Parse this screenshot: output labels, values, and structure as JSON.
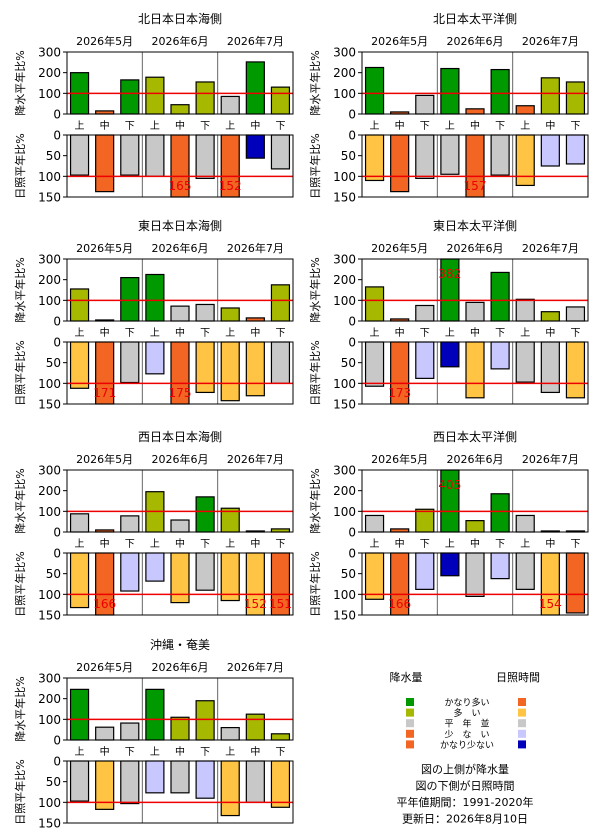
{
  "months": [
    "2026年5月",
    "2026年6月",
    "2026年7月"
  ],
  "periods": [
    "上",
    "中",
    "下",
    "上",
    "中",
    "下",
    "上",
    "中",
    "下"
  ],
  "precip_axis_label": "降水平年比%",
  "sun_axis_label": "日照平年比%",
  "precip_ticks": [
    "0",
    "100",
    "200",
    "300"
  ],
  "sun_ticks": [
    "0",
    "50",
    "100",
    "150"
  ],
  "colors": {
    "precip": {
      "very_much": "#009900",
      "much": "#a6b900",
      "normal": "#c8c8c8",
      "little": "#f26522",
      "very_little": "#f26522"
    },
    "sun": {
      "very_much": "#f26522",
      "much": "#ffc444",
      "normal": "#c8c8c8",
      "little": "#c8c8ff",
      "very_little": "#0000bb"
    },
    "ref_line": "#ee0000",
    "over_label": "#ee0000"
  },
  "legend": {
    "precip_title": "降水量",
    "sun_title": "日照時間",
    "items": [
      "かなり多い",
      "多　い",
      "平　年　並",
      "少　な　い",
      "かなり少ない"
    ],
    "precip_colors": [
      "#009900",
      "#a6b900",
      "#c8c8c8",
      "#f26522",
      "#f26522"
    ],
    "sun_colors": [
      "#f26522",
      "#ffc444",
      "#c8c8c8",
      "#c8c8ff",
      "#0000bb"
    ]
  },
  "notes": [
    "図の上側が降水量",
    "図の下側が日照時間",
    "平年値期間：1991-2020年",
    "更新日：2026年8月10日"
  ],
  "chart_data": [
    {
      "type": "bar",
      "title": "北日本日本海側",
      "categories": [
        "上",
        "中",
        "下",
        "上",
        "中",
        "下",
        "上",
        "中",
        "下"
      ],
      "precip": {
        "values": [
          200,
          15,
          165,
          178,
          45,
          155,
          85,
          252,
          130
        ],
        "classes": [
          "very_much",
          "little",
          "very_much",
          "much",
          "much",
          "much",
          "normal",
          "very_much",
          "much"
        ],
        "ylim": [
          0,
          300
        ]
      },
      "sunshine": {
        "values": [
          97,
          137,
          97,
          100,
          165,
          105,
          152,
          56,
          82
        ],
        "classes": [
          "normal",
          "very_much",
          "normal",
          "normal",
          "very_much",
          "normal",
          "very_much",
          "very_little",
          "normal"
        ],
        "ylim": [
          0,
          150
        ]
      }
    },
    {
      "type": "bar",
      "title": "北日本太平洋側",
      "categories": [
        "上",
        "中",
        "下",
        "上",
        "中",
        "下",
        "上",
        "中",
        "下"
      ],
      "precip": {
        "values": [
          225,
          10,
          90,
          220,
          25,
          215,
          40,
          175,
          155
        ],
        "classes": [
          "very_much",
          "little",
          "normal",
          "very_much",
          "little",
          "very_much",
          "little",
          "much",
          "much"
        ],
        "ylim": [
          0,
          300
        ]
      },
      "sunshine": {
        "values": [
          110,
          137,
          105,
          95,
          157,
          97,
          122,
          75,
          70
        ],
        "classes": [
          "much",
          "very_much",
          "normal",
          "normal",
          "very_much",
          "normal",
          "much",
          "little",
          "little"
        ],
        "ylim": [
          0,
          150
        ]
      }
    },
    {
      "type": "bar",
      "title": "東日本日本海側",
      "categories": [
        "上",
        "中",
        "下",
        "上",
        "中",
        "下",
        "上",
        "中",
        "下"
      ],
      "precip": {
        "values": [
          155,
          5,
          210,
          225,
          72,
          80,
          63,
          15,
          175
        ],
        "classes": [
          "much",
          "little",
          "very_much",
          "very_much",
          "normal",
          "normal",
          "much",
          "little",
          "much"
        ],
        "ylim": [
          0,
          300
        ]
      },
      "sunshine": {
        "values": [
          112,
          171,
          98,
          77,
          175,
          122,
          142,
          130,
          100
        ],
        "classes": [
          "much",
          "very_much",
          "normal",
          "little",
          "very_much",
          "much",
          "much",
          "much",
          "normal"
        ],
        "ylim": [
          0,
          150
        ]
      }
    },
    {
      "type": "bar",
      "title": "東日本太平洋側",
      "categories": [
        "上",
        "中",
        "下",
        "上",
        "中",
        "下",
        "上",
        "中",
        "下"
      ],
      "precip": {
        "values": [
          165,
          10,
          75,
          382,
          90,
          235,
          105,
          45,
          68
        ],
        "classes": [
          "much",
          "little",
          "normal",
          "very_much",
          "normal",
          "very_much",
          "normal",
          "much",
          "normal"
        ],
        "ylim": [
          0,
          300
        ]
      },
      "sunshine": {
        "values": [
          107,
          173,
          88,
          60,
          135,
          65,
          97,
          122,
          135
        ],
        "classes": [
          "normal",
          "very_much",
          "little",
          "very_little",
          "much",
          "little",
          "normal",
          "normal",
          "much"
        ],
        "ylim": [
          0,
          150
        ]
      }
    },
    {
      "type": "bar",
      "title": "西日本日本海側",
      "categories": [
        "上",
        "中",
        "下",
        "上",
        "中",
        "下",
        "上",
        "中",
        "下"
      ],
      "precip": {
        "values": [
          88,
          10,
          78,
          195,
          58,
          170,
          115,
          5,
          15
        ],
        "classes": [
          "normal",
          "little",
          "normal",
          "much",
          "normal",
          "very_much",
          "much",
          "little",
          "much"
        ],
        "ylim": [
          0,
          300
        ]
      },
      "sunshine": {
        "values": [
          132,
          166,
          92,
          68,
          120,
          90,
          115,
          152,
          151
        ],
        "classes": [
          "much",
          "very_much",
          "little",
          "little",
          "much",
          "normal",
          "much",
          "much",
          "very_much"
        ],
        "ylim": [
          0,
          150
        ]
      }
    },
    {
      "type": "bar",
      "title": "西日本太平洋側",
      "categories": [
        "上",
        "中",
        "下",
        "上",
        "中",
        "下",
        "上",
        "中",
        "下"
      ],
      "precip": {
        "values": [
          80,
          15,
          110,
          405,
          55,
          185,
          80,
          5,
          5
        ],
        "classes": [
          "normal",
          "little",
          "much",
          "very_much",
          "much",
          "very_much",
          "normal",
          "little",
          "little"
        ],
        "ylim": [
          0,
          300
        ]
      },
      "sunshine": {
        "values": [
          112,
          166,
          88,
          55,
          105,
          62,
          88,
          154,
          145
        ],
        "classes": [
          "much",
          "very_much",
          "little",
          "very_little",
          "normal",
          "little",
          "normal",
          "much",
          "very_much"
        ],
        "ylim": [
          0,
          150
        ]
      }
    },
    {
      "type": "bar",
      "title": "沖縄・奄美",
      "categories": [
        "上",
        "中",
        "下",
        "上",
        "中",
        "下",
        "上",
        "中",
        "下"
      ],
      "precip": {
        "values": [
          245,
          62,
          82,
          245,
          110,
          190,
          60,
          125,
          30
        ],
        "classes": [
          "very_much",
          "normal",
          "normal",
          "very_much",
          "much",
          "much",
          "normal",
          "much",
          "much"
        ],
        "ylim": [
          0,
          300
        ]
      },
      "sunshine": {
        "values": [
          97,
          117,
          103,
          77,
          77,
          90,
          132,
          100,
          112
        ],
        "classes": [
          "normal",
          "much",
          "normal",
          "little",
          "normal",
          "little",
          "much",
          "normal",
          "much"
        ],
        "ylim": [
          0,
          150
        ]
      }
    }
  ]
}
